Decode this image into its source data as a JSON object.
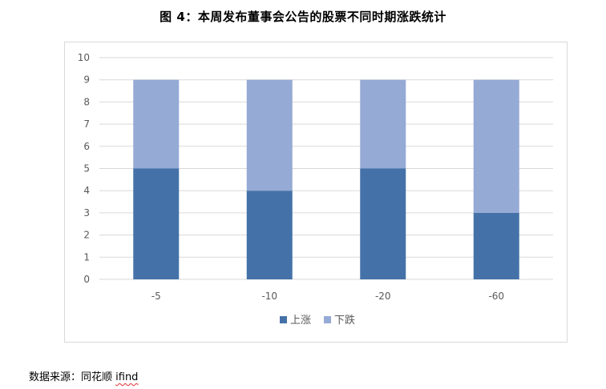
{
  "title": "图 4：本周发布董事会公告的股票不同时期涨跌统计",
  "source": {
    "prefix": "数据来源：同花顺 ",
    "brand": "ifind"
  },
  "colors": {
    "up": "#4472a8",
    "down": "#95aad4",
    "grid": "#d9d9d9",
    "axis_text": "#595959"
  },
  "chart_data": {
    "type": "bar",
    "stacked": true,
    "categories": [
      "-5",
      "-10",
      "-20",
      "-60"
    ],
    "series": [
      {
        "name": "上涨",
        "values": [
          5,
          4,
          5,
          3
        ]
      },
      {
        "name": "下跌",
        "values": [
          4,
          5,
          4,
          6
        ]
      }
    ],
    "title": "",
    "xlabel": "",
    "ylabel": "",
    "ylim": [
      0,
      10
    ],
    "yticks": [
      "0",
      "1",
      "2",
      "3",
      "4",
      "5",
      "6",
      "7",
      "8",
      "9",
      "10"
    ],
    "grid": true,
    "legend": "bottom"
  }
}
